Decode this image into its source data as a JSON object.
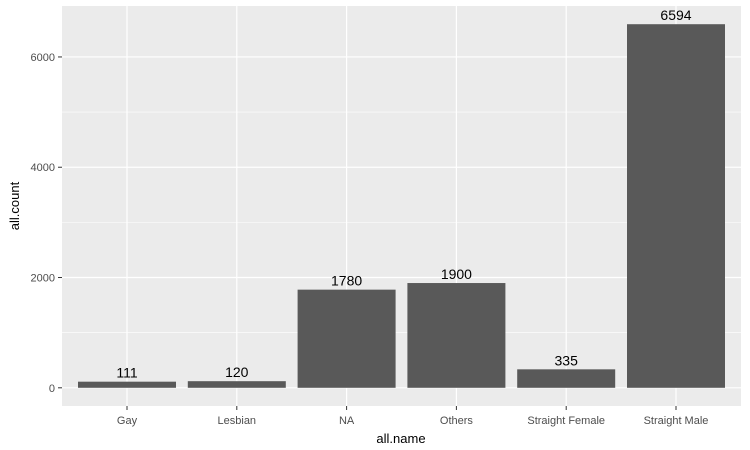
{
  "chart_data": {
    "type": "bar",
    "categories": [
      "Gay",
      "Lesbian",
      "NA",
      "Others",
      "Straight Female",
      "Straight Male"
    ],
    "values": [
      111,
      120,
      1780,
      1900,
      335,
      6594
    ],
    "data_labels": [
      "111",
      "120",
      "1780",
      "1900",
      "335",
      "6594"
    ],
    "xlabel": "all.name",
    "ylabel": "all.count",
    "ylim": [
      -330,
      6924
    ],
    "yticks": [
      0,
      2000,
      4000,
      6000
    ],
    "ytick_labels": [
      "0",
      "2000",
      "4000",
      "6000"
    ],
    "grid": true,
    "legend": "none",
    "colors": {
      "panel": "#EBEBEB",
      "grid": "#FFFFFF",
      "bar": "#595959",
      "axis_text": "#4D4D4D",
      "label_text": "#000000"
    }
  }
}
